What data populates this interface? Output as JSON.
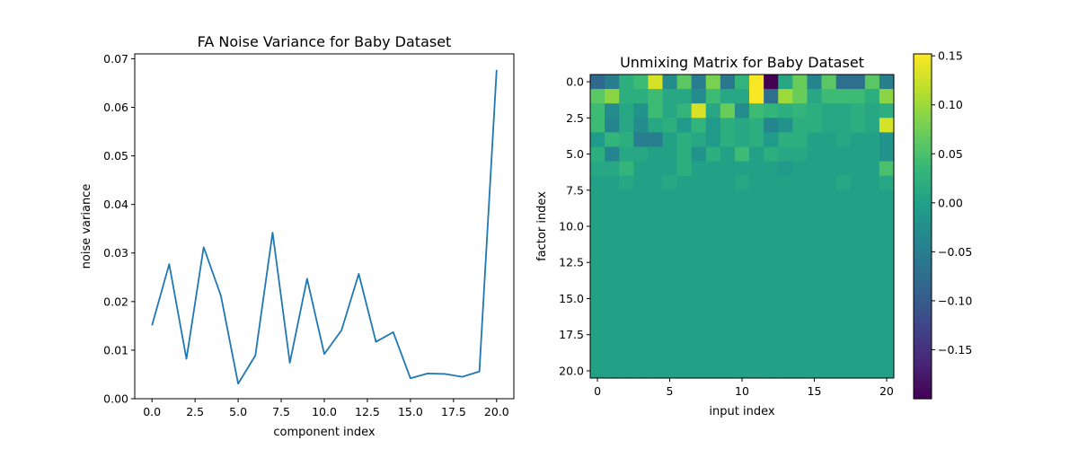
{
  "chart_data": [
    {
      "type": "line",
      "title": "FA Noise Variance for Baby Dataset",
      "xlabel": "component index",
      "ylabel": "noise variance",
      "xlim": [
        -1.0,
        21.0
      ],
      "ylim": [
        0.0,
        0.071
      ],
      "xticks": [
        0.0,
        2.5,
        5.0,
        7.5,
        10.0,
        12.5,
        15.0,
        17.5,
        20.0
      ],
      "xtick_labels": [
        "0.0",
        "2.5",
        "5.0",
        "7.5",
        "10.0",
        "12.5",
        "15.0",
        "17.5",
        "20.0"
      ],
      "yticks": [
        0.0,
        0.01,
        0.02,
        0.03,
        0.04,
        0.05,
        0.06,
        0.07
      ],
      "ytick_labels": [
        "0.00",
        "0.01",
        "0.02",
        "0.03",
        "0.04",
        "0.05",
        "0.06",
        "0.07"
      ],
      "color": "#1f77b4",
      "x": [
        0,
        1,
        2,
        3,
        4,
        5,
        6,
        7,
        8,
        9,
        10,
        11,
        12,
        13,
        14,
        15,
        16,
        17,
        18,
        19,
        20
      ],
      "y": [
        0.0151,
        0.0277,
        0.0082,
        0.0312,
        0.0212,
        0.0031,
        0.0089,
        0.0342,
        0.0074,
        0.0247,
        0.0092,
        0.0141,
        0.0257,
        0.0117,
        0.0137,
        0.0042,
        0.0052,
        0.0051,
        0.0045,
        0.0056,
        0.0677
      ],
      "grid": false
    },
    {
      "type": "heatmap",
      "title": "Unmixing Matrix for Baby Dataset",
      "xlabel": "input index",
      "ylabel": "factor index",
      "xticks": [
        0,
        5,
        10,
        15,
        20
      ],
      "xtick_labels": [
        "0",
        "5",
        "10",
        "15",
        "20"
      ],
      "yticks": [
        0.0,
        2.5,
        5.0,
        7.5,
        10.0,
        12.5,
        15.0,
        17.5,
        20.0
      ],
      "ytick_labels": [
        "0.0",
        "2.5",
        "5.0",
        "7.5",
        "10.0",
        "12.5",
        "15.0",
        "17.5",
        "20.0"
      ],
      "colormap": "viridis",
      "vmin": -0.2,
      "vmax": 0.152,
      "colorbar_ticks": [
        0.15,
        0.1,
        0.05,
        0.0,
        -0.05,
        -0.1,
        -0.15
      ],
      "colorbar_tick_labels": [
        "0.15",
        "0.10",
        "0.05",
        "0.00",
        "−0.05",
        "−0.10",
        "−0.15"
      ],
      "matrix": [
        [
          -0.08,
          -0.05,
          0.02,
          0.04,
          0.13,
          -0.03,
          0.06,
          -0.05,
          0.08,
          -0.06,
          0.03,
          0.15,
          -0.2,
          0.01,
          0.07,
          -0.04,
          0.06,
          -0.07,
          -0.07,
          0.06,
          -0.05
        ],
        [
          0.06,
          0.09,
          0.02,
          0.02,
          0.04,
          0.01,
          0.01,
          -0.03,
          0.04,
          0.01,
          0.01,
          0.15,
          -0.07,
          0.1,
          0.07,
          0.01,
          0.04,
          0.04,
          0.04,
          0.02,
          0.09
        ],
        [
          0.04,
          -0.03,
          0.01,
          -0.02,
          0.04,
          0.01,
          0.03,
          0.13,
          0.01,
          0.07,
          -0.03,
          0.04,
          0.03,
          0.02,
          0.03,
          0.02,
          0.01,
          0.01,
          0.02,
          0.01,
          0.02
        ],
        [
          0.04,
          -0.04,
          0.01,
          -0.03,
          0.01,
          0.02,
          -0.01,
          0.03,
          -0.01,
          0.02,
          0.01,
          0.02,
          -0.04,
          -0.02,
          0.02,
          0.02,
          0.01,
          0.01,
          0.02,
          0.01,
          0.13
        ],
        [
          -0.01,
          0.03,
          0.02,
          -0.05,
          -0.05,
          0.0,
          0.02,
          0.01,
          -0.01,
          0.02,
          0.01,
          0.02,
          -0.01,
          0.02,
          0.02,
          0.0,
          0.0,
          0.01,
          0.0,
          0.0,
          -0.02
        ],
        [
          0.02,
          -0.04,
          0.01,
          0.01,
          0.0,
          0.0,
          0.02,
          -0.02,
          0.02,
          0.0,
          0.04,
          0.0,
          0.02,
          0.01,
          0.01,
          0.0,
          0.0,
          0.0,
          0.0,
          0.0,
          -0.02
        ],
        [
          0.01,
          0.01,
          0.03,
          0.0,
          0.0,
          0.0,
          0.02,
          0.0,
          0.0,
          0.0,
          0.0,
          0.0,
          0.0,
          -0.01,
          0.0,
          0.0,
          0.0,
          0.0,
          0.0,
          0.0,
          0.05
        ],
        [
          0.0,
          0.0,
          0.01,
          0.0,
          0.0,
          0.01,
          0.0,
          0.0,
          0.0,
          0.0,
          0.01,
          0.0,
          0.0,
          0.0,
          0.0,
          0.0,
          0.0,
          0.01,
          0.0,
          0.0,
          0.01
        ],
        [
          0.0,
          0.0,
          0.0,
          0.0,
          0.0,
          0.0,
          0.0,
          0.0,
          0.0,
          0.0,
          0.0,
          0.0,
          0.0,
          0.0,
          0.0,
          0.0,
          0.0,
          0.0,
          0.0,
          0.0,
          0.0
        ],
        [
          0.0,
          0.0,
          0.0,
          0.0,
          0.0,
          0.0,
          0.0,
          0.0,
          0.0,
          0.0,
          0.0,
          0.0,
          0.0,
          0.0,
          0.0,
          0.0,
          0.0,
          0.0,
          0.0,
          0.0,
          0.0
        ],
        [
          0.0,
          0.0,
          0.0,
          0.0,
          0.0,
          0.0,
          0.0,
          0.0,
          0.0,
          0.0,
          0.0,
          0.0,
          0.0,
          0.0,
          0.0,
          0.0,
          0.0,
          0.0,
          0.0,
          0.0,
          0.0
        ],
        [
          0.0,
          0.0,
          0.0,
          0.0,
          0.0,
          0.0,
          0.0,
          0.0,
          0.0,
          0.0,
          0.0,
          0.0,
          0.0,
          0.0,
          0.0,
          0.0,
          0.0,
          0.0,
          0.0,
          0.0,
          0.0
        ],
        [
          0.0,
          0.0,
          0.0,
          0.0,
          0.0,
          0.0,
          0.0,
          0.0,
          0.0,
          0.0,
          0.0,
          0.0,
          0.0,
          0.0,
          0.0,
          0.0,
          0.0,
          0.0,
          0.0,
          0.0,
          0.0
        ],
        [
          0.0,
          0.0,
          0.0,
          0.0,
          0.0,
          0.0,
          0.0,
          0.0,
          0.0,
          0.0,
          0.0,
          0.0,
          0.0,
          0.0,
          0.0,
          0.0,
          0.0,
          0.0,
          0.0,
          0.0,
          0.0
        ],
        [
          0.0,
          0.0,
          0.0,
          0.0,
          0.0,
          0.0,
          0.0,
          0.0,
          0.0,
          0.0,
          0.0,
          0.0,
          0.0,
          0.0,
          0.0,
          0.0,
          0.0,
          0.0,
          0.0,
          0.0,
          0.0
        ],
        [
          0.0,
          0.0,
          0.0,
          0.0,
          0.0,
          0.0,
          0.0,
          0.0,
          0.0,
          0.0,
          0.0,
          0.0,
          0.0,
          0.0,
          0.0,
          0.0,
          0.0,
          0.0,
          0.0,
          0.0,
          0.0
        ],
        [
          0.0,
          0.0,
          0.0,
          0.0,
          0.0,
          0.0,
          0.0,
          0.0,
          0.0,
          0.0,
          0.0,
          0.0,
          0.0,
          0.0,
          0.0,
          0.0,
          0.0,
          0.0,
          0.0,
          0.0,
          0.0
        ],
        [
          0.0,
          0.0,
          0.0,
          0.0,
          0.0,
          0.0,
          0.0,
          0.0,
          0.0,
          0.0,
          0.0,
          0.0,
          0.0,
          0.0,
          0.0,
          0.0,
          0.0,
          0.0,
          0.0,
          0.0,
          0.0
        ],
        [
          0.0,
          0.0,
          0.0,
          0.0,
          0.0,
          0.0,
          0.0,
          0.0,
          0.0,
          0.0,
          0.0,
          0.0,
          0.0,
          0.0,
          0.0,
          0.0,
          0.0,
          0.0,
          0.0,
          0.0,
          0.0
        ],
        [
          0.0,
          0.0,
          0.0,
          0.0,
          0.0,
          0.0,
          0.0,
          0.0,
          0.0,
          0.0,
          0.0,
          0.0,
          0.0,
          0.0,
          0.0,
          0.0,
          0.0,
          0.0,
          0.0,
          0.0,
          0.0
        ],
        [
          0.0,
          0.0,
          0.0,
          0.0,
          0.0,
          0.0,
          0.0,
          0.0,
          0.0,
          0.0,
          0.0,
          0.0,
          0.0,
          0.0,
          0.0,
          0.0,
          0.0,
          0.0,
          0.0,
          0.0,
          0.0
        ]
      ]
    }
  ]
}
